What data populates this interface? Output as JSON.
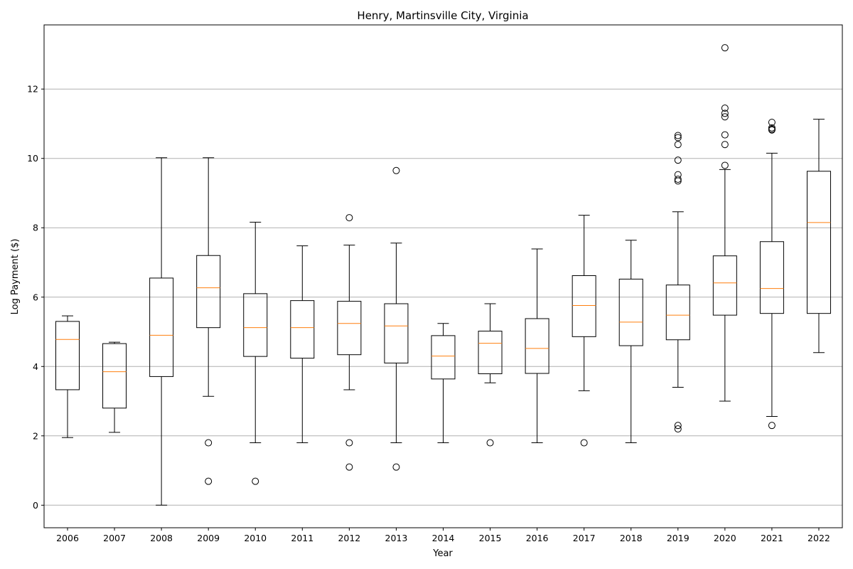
{
  "chart_data": {
    "type": "box",
    "title": "Henry, Martinsville City, Virginia",
    "xlabel": "Year",
    "ylabel": "Log Payment ($)",
    "ylim": [
      -0.65,
      13.85
    ],
    "yticks": [
      0,
      2,
      4,
      6,
      8,
      10,
      12
    ],
    "grid": "y",
    "colors": {
      "box": "#000000",
      "median": "#ff7f0e",
      "grid": "#b0b0b0"
    },
    "categories": [
      "2006",
      "2007",
      "2008",
      "2009",
      "2010",
      "2011",
      "2012",
      "2013",
      "2014",
      "2015",
      "2016",
      "2017",
      "2018",
      "2019",
      "2020",
      "2021",
      "2022"
    ],
    "boxes": [
      {
        "year": "2006",
        "whislo": 1.95,
        "q1": 3.33,
        "med": 4.78,
        "q3": 5.3,
        "whishi": 5.46,
        "fliers": []
      },
      {
        "year": "2007",
        "whislo": 2.1,
        "q1": 2.8,
        "med": 3.85,
        "q3": 4.66,
        "whishi": 4.7,
        "fliers": []
      },
      {
        "year": "2008",
        "whislo": 0.0,
        "q1": 3.71,
        "med": 4.9,
        "q3": 6.55,
        "whishi": 10.02,
        "fliers": []
      },
      {
        "year": "2009",
        "whislo": 3.14,
        "q1": 5.12,
        "med": 6.27,
        "q3": 7.2,
        "whishi": 10.02,
        "fliers": [
          1.8,
          0.69
        ]
      },
      {
        "year": "2010",
        "whislo": 1.8,
        "q1": 4.29,
        "med": 5.12,
        "q3": 6.1,
        "whishi": 8.16,
        "fliers": [
          0.69
        ]
      },
      {
        "year": "2011",
        "whislo": 1.8,
        "q1": 4.24,
        "med": 5.12,
        "q3": 5.9,
        "whishi": 7.48,
        "fliers": []
      },
      {
        "year": "2012",
        "whislo": 3.33,
        "q1": 4.34,
        "med": 5.24,
        "q3": 5.88,
        "whishi": 7.5,
        "fliers": [
          8.29,
          1.8,
          1.1
        ]
      },
      {
        "year": "2013",
        "whislo": 1.8,
        "q1": 4.1,
        "med": 5.17,
        "q3": 5.81,
        "whishi": 7.56,
        "fliers": [
          9.65,
          1.1
        ]
      },
      {
        "year": "2014",
        "whislo": 1.8,
        "q1": 3.64,
        "med": 4.3,
        "q3": 4.89,
        "whishi": 5.24,
        "fliers": []
      },
      {
        "year": "2015",
        "whislo": 3.53,
        "q1": 3.79,
        "med": 4.67,
        "q3": 5.02,
        "whishi": 5.81,
        "fliers": [
          1.8
        ]
      },
      {
        "year": "2016",
        "whislo": 1.8,
        "q1": 3.8,
        "med": 4.52,
        "q3": 5.38,
        "whishi": 7.39,
        "fliers": []
      },
      {
        "year": "2017",
        "whislo": 3.3,
        "q1": 4.86,
        "med": 5.76,
        "q3": 6.62,
        "whishi": 8.36,
        "fliers": [
          1.8
        ]
      },
      {
        "year": "2018",
        "whislo": 1.8,
        "q1": 4.6,
        "med": 5.28,
        "q3": 6.52,
        "whishi": 7.64,
        "fliers": []
      },
      {
        "year": "2019",
        "whislo": 3.4,
        "q1": 4.77,
        "med": 5.48,
        "q3": 6.35,
        "whishi": 8.46,
        "fliers": [
          10.66,
          10.6,
          10.4,
          9.95,
          9.53,
          9.4,
          9.35,
          2.3,
          2.2
        ]
      },
      {
        "year": "2020",
        "whislo": 3.0,
        "q1": 5.48,
        "med": 6.41,
        "q3": 7.19,
        "whishi": 9.68,
        "fliers": [
          13.19,
          11.45,
          11.3,
          11.2,
          10.68,
          10.4,
          9.8
        ]
      },
      {
        "year": "2021",
        "whislo": 2.56,
        "q1": 5.53,
        "med": 6.25,
        "q3": 7.6,
        "whishi": 10.15,
        "fliers": [
          11.04,
          10.88,
          10.84,
          10.82,
          2.3
        ]
      },
      {
        "year": "2022",
        "whislo": 4.4,
        "q1": 5.53,
        "med": 8.15,
        "q3": 9.63,
        "whishi": 11.13,
        "fliers": []
      }
    ]
  }
}
